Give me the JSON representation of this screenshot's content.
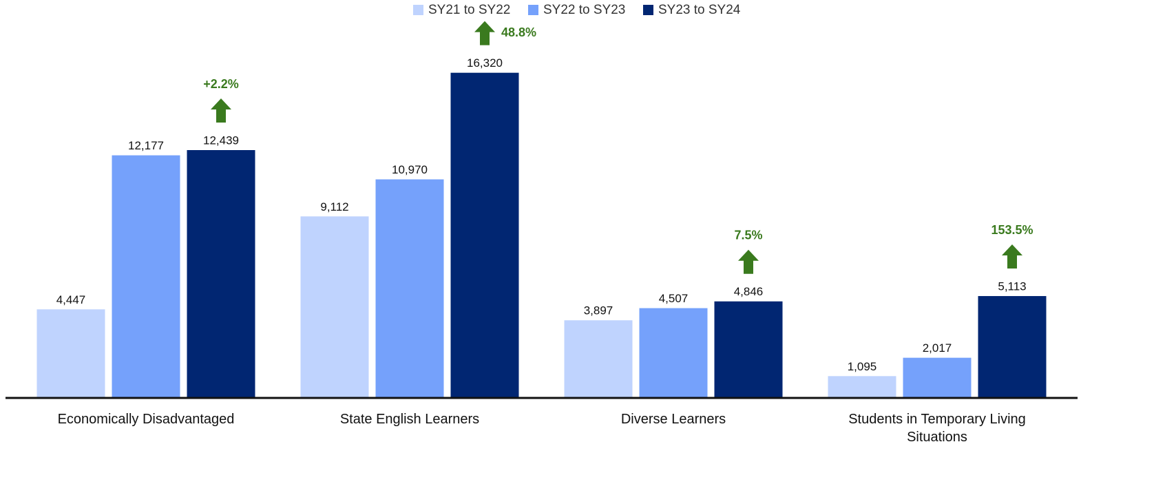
{
  "chart_data": {
    "type": "bar",
    "categories": [
      "Economically Disadvantaged",
      "State English Learners",
      "Diverse Learners",
      "Students in Temporary Living Situations"
    ],
    "series": [
      {
        "name": "SY21 to SY22",
        "color": "#bfd3fe",
        "values": [
          4447,
          9112,
          3897,
          1095
        ],
        "value_labels": [
          "4,447",
          "9,112",
          "3,897",
          "1,095"
        ]
      },
      {
        "name": "SY22 to SY23",
        "color": "#75a1fb",
        "values": [
          12177,
          10970,
          4507,
          2017
        ],
        "value_labels": [
          "12,177",
          "10,970",
          "4,507",
          "2,017"
        ]
      },
      {
        "name": "SY23 to SY24",
        "color": "#012672",
        "values": [
          12439,
          16320,
          4846,
          5113
        ],
        "value_labels": [
          "12,439",
          "16,320",
          "4,846",
          "5,113"
        ]
      }
    ],
    "annotations": [
      "+2.2%",
      "48.8%",
      "7.5%",
      "153.5%"
    ],
    "annotation_color": "#3a7a1e",
    "ylim": [
      0,
      17000
    ],
    "legend": "top"
  }
}
